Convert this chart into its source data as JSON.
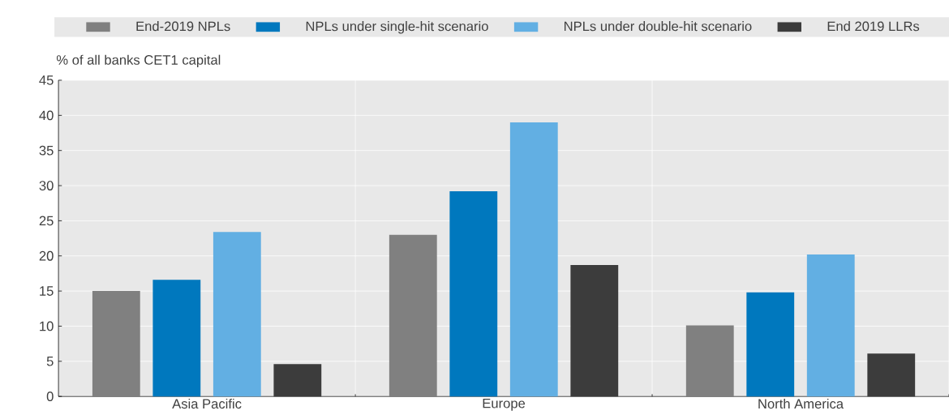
{
  "chart_data": {
    "type": "bar",
    "ylabel": "% of all banks CET1 capital",
    "categories": [
      "Asia Pacific",
      "Europe",
      "North America"
    ],
    "series": [
      {
        "name": "End-2019 NPLs",
        "color": "#808080",
        "values": [
          15.0,
          23.0,
          10.1
        ]
      },
      {
        "name": "NPLs under single-hit scenario",
        "color": "#0078be",
        "values": [
          16.6,
          29.2,
          14.8
        ]
      },
      {
        "name": "NPLs under double-hit scenario",
        "color": "#62afe3",
        "values": [
          23.4,
          39.0,
          20.2
        ]
      },
      {
        "name": "End 2019 LLRs",
        "color": "#3c3c3c",
        "values": [
          4.6,
          18.7,
          6.1
        ]
      }
    ],
    "ylim": [
      0,
      45
    ],
    "yticks": [
      0,
      5,
      10,
      15,
      20,
      25,
      30,
      35,
      40,
      45
    ],
    "grid": "y",
    "legend": "top"
  }
}
